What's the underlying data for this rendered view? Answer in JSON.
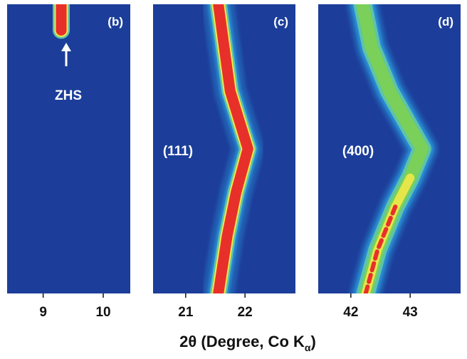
{
  "chart_data": {
    "type": "heatmap",
    "xlabel": "2θ (Degree, Co K",
    "xlabel_subscript": "α",
    "colors": {
      "background": "#1c3e9a",
      "low": "#2a8fd6",
      "mid": "#5ec4a8",
      "high": "#7fd24a",
      "peak": "#e8302a",
      "edge": "#f2e84a"
    },
    "panels": [
      {
        "label": "(b)",
        "xlim": [
          8.4,
          10.45
        ],
        "ticks": [
          9,
          10
        ],
        "tick_labels": [
          "9",
          "10"
        ],
        "annotation": "ZHS",
        "trace_intensity": "high",
        "trace": [
          [
            9.3,
            0.0
          ],
          [
            9.3,
            0.09
          ]
        ]
      },
      {
        "label": "(c)",
        "xlim": [
          20.45,
          22.85
        ],
        "ticks": [
          21,
          22
        ],
        "tick_labels": [
          "21",
          "22"
        ],
        "annotation": "(111)",
        "trace_intensity": "high",
        "trace": [
          [
            21.55,
            0.0
          ],
          [
            21.65,
            0.15
          ],
          [
            21.75,
            0.3
          ],
          [
            22.05,
            0.5
          ],
          [
            21.85,
            0.65
          ],
          [
            21.7,
            0.8
          ],
          [
            21.55,
            1.0
          ]
        ]
      },
      {
        "label": "(d)",
        "xlim": [
          41.45,
          43.85
        ],
        "ticks": [
          42,
          43
        ],
        "tick_labels": [
          "42",
          "43"
        ],
        "annotation": "(400)",
        "trace_intensity": "mixed",
        "trace": [
          [
            42.2,
            0.0
          ],
          [
            42.35,
            0.15
          ],
          [
            42.65,
            0.3
          ],
          [
            43.2,
            0.5
          ],
          [
            43.0,
            0.6
          ],
          [
            42.75,
            0.7
          ],
          [
            42.45,
            0.85
          ],
          [
            42.25,
            1.0
          ]
        ]
      }
    ]
  }
}
